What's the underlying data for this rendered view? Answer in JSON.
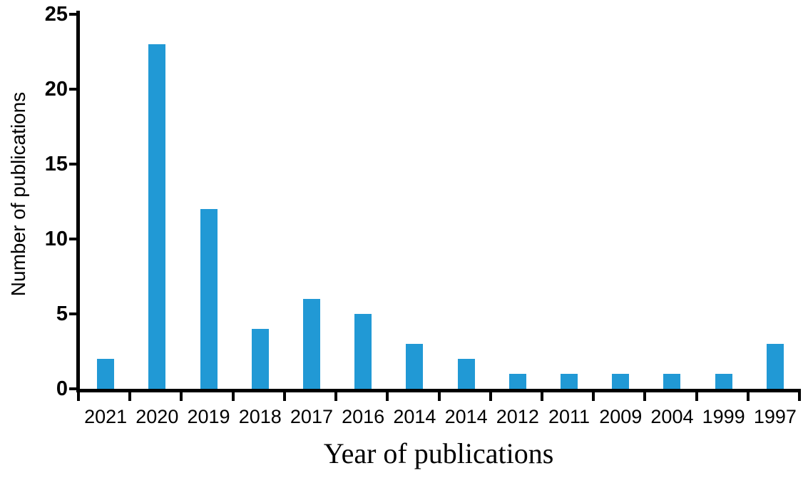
{
  "chart_data": {
    "type": "bar",
    "title": "",
    "xlabel": "Year of publications",
    "ylabel": "Number of publications",
    "categories": [
      "2021",
      "2020",
      "2019",
      "2018",
      "2017",
      "2016",
      "2014",
      "2014",
      "2012",
      "2011",
      "2009",
      "2004",
      "1999",
      "1997"
    ],
    "values": [
      2,
      23,
      12,
      4,
      6,
      5,
      3,
      2,
      1,
      1,
      1,
      1,
      1,
      3
    ],
    "ylim": [
      0,
      25
    ],
    "yticks": [
      0,
      5,
      10,
      15,
      20,
      25
    ],
    "bar_color": "#2199d5",
    "axis_color": "#000000",
    "background_color": "#ffffff",
    "grid": false,
    "legend": false
  }
}
